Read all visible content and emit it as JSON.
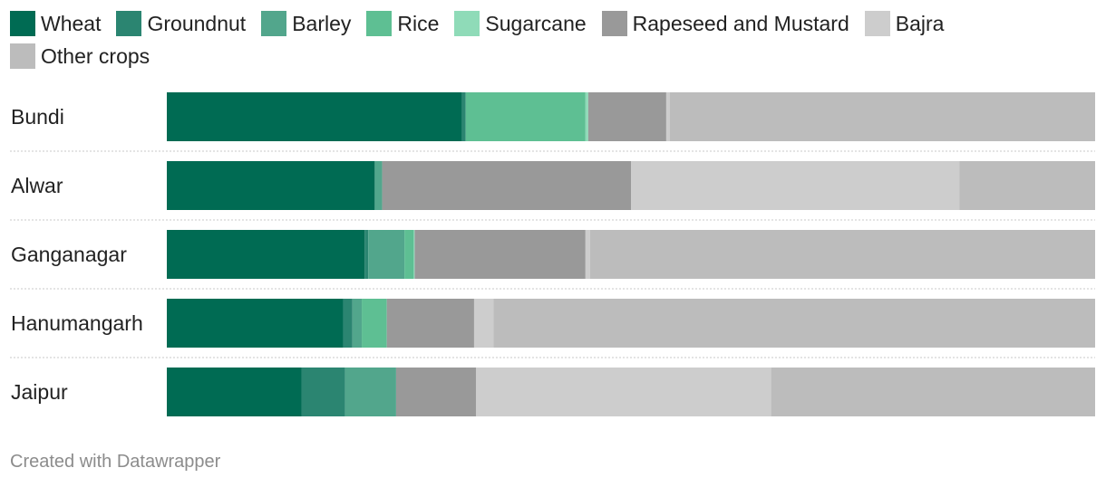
{
  "chart_data": {
    "type": "bar",
    "orientation": "horizontal",
    "stacked": true,
    "grid": false,
    "legend_position": "top",
    "categories": [
      "Bundi",
      "Alwar",
      "Ganganagar",
      "Hanumangarh",
      "Jaipur"
    ],
    "series": [
      {
        "name": "Wheat",
        "color": "#006b53",
        "values": [
          31.8,
          22.4,
          21.3,
          19.0,
          14.5
        ]
      },
      {
        "name": "Groundnut",
        "color": "#2b8571",
        "values": [
          0.4,
          0.0,
          0.4,
          1.0,
          4.7
        ]
      },
      {
        "name": "Barley",
        "color": "#52a68c",
        "values": [
          0.0,
          0.8,
          3.9,
          1.0,
          5.5
        ]
      },
      {
        "name": "Rice",
        "color": "#5ebf93",
        "values": [
          12.9,
          0.0,
          1.0,
          2.7,
          0.0
        ]
      },
      {
        "name": "Sugarcane",
        "color": "#8fdbb8",
        "values": [
          0.3,
          0.0,
          0.1,
          0.0,
          0.0
        ]
      },
      {
        "name": "Rapeseed and Mustard",
        "color": "#999999",
        "values": [
          8.4,
          26.8,
          18.4,
          9.4,
          8.6
        ]
      },
      {
        "name": "Bajra",
        "color": "#cdcdcd",
        "values": [
          0.4,
          35.4,
          0.5,
          2.1,
          31.8
        ]
      },
      {
        "name": "Other crops",
        "color": "#bcbcbc",
        "values": [
          45.8,
          14.6,
          54.4,
          64.8,
          34.9
        ]
      }
    ],
    "xlim": [
      0,
      100
    ]
  },
  "footer": {
    "credit": "Created with Datawrapper"
  }
}
